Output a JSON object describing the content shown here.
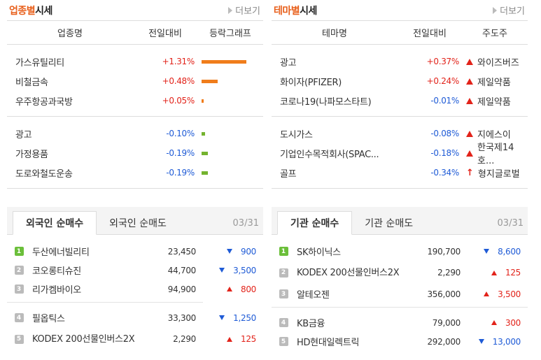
{
  "industry": {
    "title_accent": "업종별",
    "title_rest": "시세",
    "more": "더보기",
    "headers": [
      "업종명",
      "전일대비",
      "등락그래프"
    ],
    "top": [
      {
        "name": "가스유틸리티",
        "change": "+1.31%",
        "dir": "up",
        "bar": 1.31
      },
      {
        "name": "비철금속",
        "change": "+0.48%",
        "dir": "up",
        "bar": 0.48
      },
      {
        "name": "우주항공과국방",
        "change": "+0.05%",
        "dir": "up",
        "bar": 0.05
      }
    ],
    "bottom": [
      {
        "name": "광고",
        "change": "-0.10%",
        "dir": "down",
        "bar": 0.1
      },
      {
        "name": "가정용품",
        "change": "-0.19%",
        "dir": "down",
        "bar": 0.19
      },
      {
        "name": "도로와철도운송",
        "change": "-0.19%",
        "dir": "down",
        "bar": 0.19
      }
    ]
  },
  "theme": {
    "title_accent": "테마별",
    "title_rest": "시세",
    "more": "더보기",
    "headers": [
      "테마명",
      "전일대비",
      "주도주"
    ],
    "top": [
      {
        "name": "광고",
        "change": "+0.37%",
        "dir": "up",
        "leader": "와이즈버즈",
        "icon": "up"
      },
      {
        "name": "화이자(PFIZER)",
        "change": "+0.24%",
        "dir": "up",
        "leader": "제일약품",
        "icon": "up"
      },
      {
        "name": "코로나19(나파모스타트)",
        "change": "-0.01%",
        "dir": "down",
        "leader": "제일약품",
        "icon": "up"
      }
    ],
    "bottom": [
      {
        "name": "도시가스",
        "change": "-0.08%",
        "dir": "down",
        "leader": "지에스이",
        "icon": "up"
      },
      {
        "name": "기업인수목적회사(SPAC...",
        "change": "-0.18%",
        "dir": "down",
        "leader": "한국제14호...",
        "icon": "up"
      },
      {
        "name": "골프",
        "change": "-0.34%",
        "dir": "down",
        "leader": "형지글로벌",
        "icon": "limit"
      }
    ]
  },
  "foreign": {
    "tab_active": "외국인 순매수",
    "tab_other": "외국인 순매도",
    "date": "03/31",
    "top": [
      {
        "rank": "1",
        "name": "두산에너빌리티",
        "price": "23,450",
        "change": "900",
        "dir": "down"
      },
      {
        "rank": "2",
        "name": "코오롱티슈진",
        "price": "44,700",
        "change": "3,500",
        "dir": "down"
      },
      {
        "rank": "3",
        "name": "리가켐바이오",
        "price": "94,900",
        "change": "800",
        "dir": "up"
      }
    ],
    "bottom": [
      {
        "rank": "4",
        "name": "필옵틱스",
        "price": "33,300",
        "change": "1,250",
        "dir": "down"
      },
      {
        "rank": "5",
        "name": "KODEX 200선물인버스2X",
        "price": "2,290",
        "change": "125",
        "dir": "up"
      }
    ]
  },
  "institution": {
    "tab_active": "기관 순매수",
    "tab_other": "기관 순매도",
    "date": "03/31",
    "top": [
      {
        "rank": "1",
        "name": "SK하이닉스",
        "price": "190,700",
        "change": "8,600",
        "dir": "down"
      },
      {
        "rank": "2",
        "name": "KODEX 200선물인버스2X",
        "price": "2,290",
        "change": "125",
        "dir": "up"
      },
      {
        "rank": "3",
        "name": "알테오젠",
        "price": "356,000",
        "change": "3,500",
        "dir": "up"
      }
    ],
    "bottom": [
      {
        "rank": "4",
        "name": "KB금융",
        "price": "79,000",
        "change": "300",
        "dir": "up"
      },
      {
        "rank": "5",
        "name": "HD현대일렉트릭",
        "price": "292,000",
        "change": "13,000",
        "dir": "down"
      }
    ]
  }
}
